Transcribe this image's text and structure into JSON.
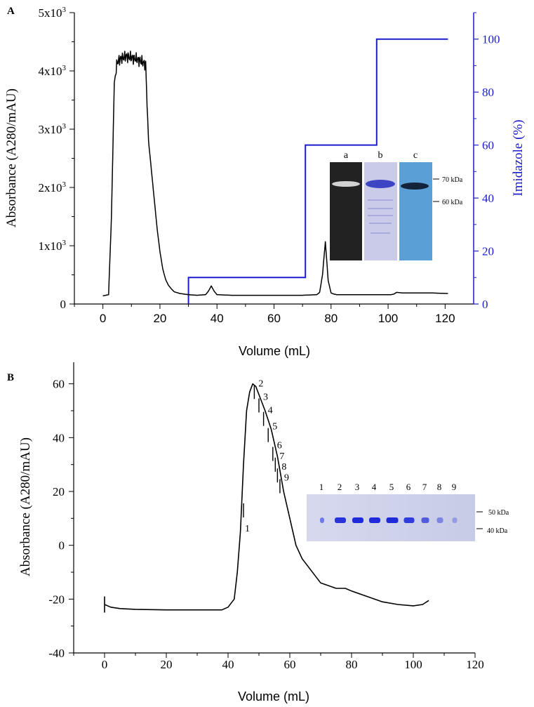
{
  "chart_data": [
    {
      "panel_label": "A",
      "type": "line",
      "xlabel": "Volume (mL)",
      "ylabel": "Absorbance (A280/mAU)",
      "y2label": "Imidazole (%)",
      "xlim": [
        -10,
        130
      ],
      "ylim": [
        0,
        5000
      ],
      "y2lim": [
        0,
        110
      ],
      "x_ticks": [
        "0",
        "20",
        "40",
        "60",
        "80",
        "100",
        "120"
      ],
      "y_ticks": [
        "0",
        "1x10",
        "2x10",
        "3x10",
        "4x10",
        "5x10"
      ],
      "y_tick_exponent": "3",
      "y2_ticks": [
        "0",
        "20",
        "40",
        "60",
        "80",
        "100"
      ],
      "series": [
        {
          "name": "Absorbance",
          "color": "#000000",
          "x": [
            0,
            1,
            2,
            3,
            4,
            5,
            6,
            8,
            10,
            12,
            14,
            15,
            16,
            17,
            18,
            19,
            20,
            21,
            22,
            23,
            24,
            25,
            27,
            30,
            33,
            36,
            37,
            38,
            39,
            40,
            45,
            50,
            60,
            70,
            75,
            76,
            77,
            78,
            79,
            80,
            81,
            82,
            85,
            90,
            95,
            100,
            101,
            102,
            103,
            105,
            110,
            115,
            121
          ],
          "values": [
            140,
            150,
            160,
            1500,
            3800,
            4150,
            4200,
            4250,
            4230,
            4200,
            4150,
            4100,
            2800,
            2300,
            1800,
            1300,
            900,
            600,
            420,
            320,
            260,
            210,
            180,
            160,
            150,
            160,
            220,
            310,
            220,
            160,
            150,
            150,
            150,
            150,
            160,
            200,
            500,
            1070,
            400,
            190,
            170,
            160,
            160,
            160,
            160,
            160,
            160,
            170,
            200,
            190,
            190,
            190,
            180
          ]
        },
        {
          "name": "Imidazole",
          "color": "#1c1ccc",
          "axis": "right",
          "x": [
            30,
            30,
            71,
            71,
            96,
            96,
            121
          ],
          "values": [
            0,
            10,
            10,
            60,
            60,
            100,
            100
          ]
        }
      ],
      "inset": {
        "lanes": [
          "a",
          "b",
          "c"
        ],
        "markers": [
          "70 kDa",
          "60 kDa"
        ]
      }
    },
    {
      "panel_label": "B",
      "type": "line",
      "xlabel": "Volume (mL)",
      "ylabel": "Absorbance (A280/mAU)",
      "xlim": [
        -10,
        120
      ],
      "ylim": [
        -40,
        68
      ],
      "x_ticks": [
        "0",
        "20",
        "40",
        "60",
        "80",
        "100",
        "120"
      ],
      "y_ticks": [
        "-40",
        "-20",
        "0",
        "20",
        "40",
        "60"
      ],
      "series": [
        {
          "name": "Absorbance",
          "color": "#000000",
          "x": [
            0,
            2,
            5,
            10,
            20,
            30,
            38,
            40,
            42,
            43,
            44,
            45,
            46,
            47,
            48,
            49,
            50,
            52,
            54,
            56,
            58,
            60,
            62,
            64,
            66,
            68,
            70,
            75,
            78,
            80,
            85,
            90,
            95,
            100,
            103,
            105
          ],
          "values": [
            -22,
            -23,
            -23.5,
            -23.8,
            -24,
            -24,
            -24,
            -23,
            -20,
            -10,
            5,
            30,
            50,
            57,
            60,
            59,
            56,
            50,
            43,
            33,
            20,
            10,
            0,
            -5,
            -8,
            -11,
            -14,
            -16,
            -16,
            -17,
            -19,
            -21,
            -22,
            -22.5,
            -22,
            -20.5
          ]
        }
      ],
      "fractions": [
        {
          "label": "1",
          "x": 45,
          "y": 14
        },
        {
          "label": "2",
          "x": 48.5,
          "y": 58
        },
        {
          "label": "3",
          "x": 50,
          "y": 53
        },
        {
          "label": "4",
          "x": 51.5,
          "y": 48
        },
        {
          "label": "5",
          "x": 53,
          "y": 42
        },
        {
          "label": "6",
          "x": 54.5,
          "y": 35
        },
        {
          "label": "7",
          "x": 55.3,
          "y": 31
        },
        {
          "label": "8",
          "x": 56,
          "y": 27
        },
        {
          "label": "9",
          "x": 56.8,
          "y": 23
        }
      ],
      "inset": {
        "lanes": [
          "1",
          "2",
          "3",
          "4",
          "5",
          "6",
          "7",
          "8",
          "9"
        ],
        "markers": [
          "50 kDa",
          "40 kDa"
        ]
      }
    }
  ]
}
